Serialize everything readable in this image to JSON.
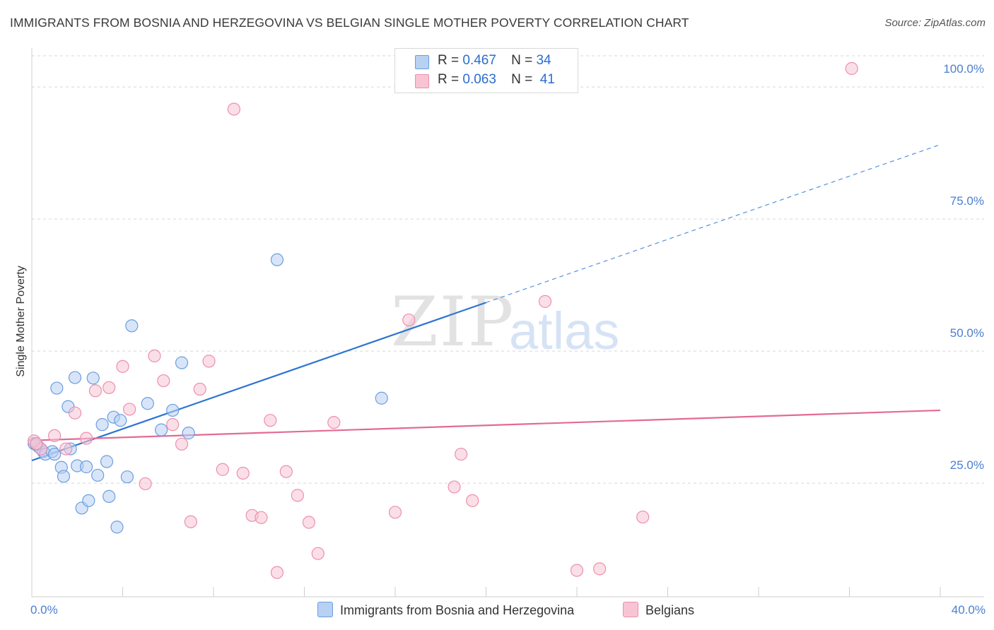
{
  "header": {
    "title": "IMMIGRANTS FROM BOSNIA AND HERZEGOVINA VS BELGIAN SINGLE MOTHER POVERTY CORRELATION CHART",
    "source": "Source: ZipAtlas.com"
  },
  "watermark": {
    "zip": "ZIP",
    "atlas": "atlas"
  },
  "legend": {
    "rows": [
      {
        "r_label": "R =",
        "r_value": "0.467",
        "n_label": "N =",
        "n_value": "34",
        "color": "#b8d0f2"
      },
      {
        "r_label": "R =",
        "r_value": "0.063",
        "n_label": "N =",
        "n_value": "41",
        "color": "#f8c4d4"
      }
    ]
  },
  "colors": {
    "blue_fill": "#b8d0f2",
    "blue_stroke": "#6a9ee0",
    "blue_line": "#2d74d2",
    "pink_fill": "#f8c4d4",
    "pink_stroke": "#ec8fae",
    "pink_line": "#e36a96",
    "grid": "#d7d7d7",
    "tick_text": "#4a7fd0"
  },
  "chart_data": {
    "type": "scatter",
    "title": "IMMIGRANTS FROM BOSNIA AND HERZEGOVINA VS BELGIAN SINGLE MOTHER POVERTY CORRELATION CHART",
    "xlabel": "",
    "ylabel": "Single Mother Poverty",
    "xlim": [
      0,
      40
    ],
    "ylim": [
      0,
      102
    ],
    "x_tick_labels": [
      "0.0%",
      "40.0%"
    ],
    "y_ticks": [
      25,
      50,
      75,
      100
    ],
    "y_tick_labels": [
      "25.0%",
      "50.0%",
      "75.0%",
      "100.0%"
    ],
    "grid": true,
    "legend_position": "bottom",
    "series": [
      {
        "name": "Immigrants from Bosnia and Herzegovina",
        "color": "blue",
        "points": [
          [
            0.1,
            29.0
          ],
          [
            0.3,
            28.4
          ],
          [
            0.5,
            27.5
          ],
          [
            0.6,
            27.0
          ],
          [
            0.9,
            27.5
          ],
          [
            1.0,
            27.0
          ],
          [
            1.1,
            39.5
          ],
          [
            1.3,
            24.5
          ],
          [
            1.4,
            22.8
          ],
          [
            1.6,
            36.0
          ],
          [
            1.7,
            28.0
          ],
          [
            1.9,
            41.5
          ],
          [
            2.0,
            24.8
          ],
          [
            2.2,
            16.8
          ],
          [
            2.4,
            24.6
          ],
          [
            2.5,
            18.2
          ],
          [
            2.7,
            41.4
          ],
          [
            2.9,
            23.0
          ],
          [
            3.1,
            32.6
          ],
          [
            3.3,
            25.6
          ],
          [
            3.4,
            19.0
          ],
          [
            3.6,
            34.0
          ],
          [
            3.75,
            13.2
          ],
          [
            3.9,
            33.4
          ],
          [
            4.2,
            22.7
          ],
          [
            4.4,
            51.3
          ],
          [
            5.1,
            36.6
          ],
          [
            5.7,
            31.6
          ],
          [
            6.2,
            35.3
          ],
          [
            6.6,
            44.3
          ],
          [
            6.9,
            31.0
          ],
          [
            10.8,
            63.8
          ],
          [
            15.4,
            37.6
          ],
          [
            0.2,
            28.8
          ]
        ]
      },
      {
        "name": "Belgians",
        "color": "pink",
        "points": [
          [
            0.1,
            29.5
          ],
          [
            0.4,
            28.0
          ],
          [
            1.0,
            30.5
          ],
          [
            1.5,
            28.0
          ],
          [
            1.9,
            34.8
          ],
          [
            2.4,
            30.0
          ],
          [
            2.8,
            39.0
          ],
          [
            3.4,
            39.6
          ],
          [
            4.0,
            43.6
          ],
          [
            4.3,
            35.5
          ],
          [
            5.0,
            21.4
          ],
          [
            5.4,
            45.6
          ],
          [
            5.8,
            40.9
          ],
          [
            6.2,
            32.6
          ],
          [
            6.6,
            28.9
          ],
          [
            7.0,
            14.2
          ],
          [
            7.4,
            39.3
          ],
          [
            7.8,
            44.6
          ],
          [
            8.4,
            24.1
          ],
          [
            8.9,
            92.3
          ],
          [
            9.3,
            23.4
          ],
          [
            9.7,
            15.4
          ],
          [
            10.1,
            15.0
          ],
          [
            10.5,
            33.4
          ],
          [
            10.8,
            4.6
          ],
          [
            11.2,
            23.7
          ],
          [
            11.7,
            19.2
          ],
          [
            12.2,
            14.1
          ],
          [
            12.6,
            8.2
          ],
          [
            13.3,
            33.0
          ],
          [
            16.0,
            16.0
          ],
          [
            16.6,
            52.4
          ],
          [
            18.6,
            20.8
          ],
          [
            18.9,
            27.0
          ],
          [
            19.4,
            18.2
          ],
          [
            22.6,
            55.9
          ],
          [
            24.0,
            5.0
          ],
          [
            25.0,
            5.3
          ],
          [
            26.9,
            15.1
          ],
          [
            36.1,
            100.0
          ],
          [
            0.2,
            29.0
          ]
        ]
      }
    ],
    "trend_lines": [
      {
        "series": "Immigrants from Bosnia and Herzegovina",
        "solid": [
          [
            0,
            25.8
          ],
          [
            20,
            55.7
          ]
        ],
        "dashed": [
          [
            20,
            55.7
          ],
          [
            40,
            85.6
          ]
        ]
      },
      {
        "series": "Belgians",
        "solid": [
          [
            0,
            29.6
          ],
          [
            40,
            35.3
          ]
        ]
      }
    ]
  },
  "bottom_legend": {
    "items": [
      {
        "label": "Immigrants from Bosnia and Herzegovina",
        "color": "#b8d0f2"
      },
      {
        "label": "Belgians",
        "color": "#f8c4d4"
      }
    ]
  }
}
